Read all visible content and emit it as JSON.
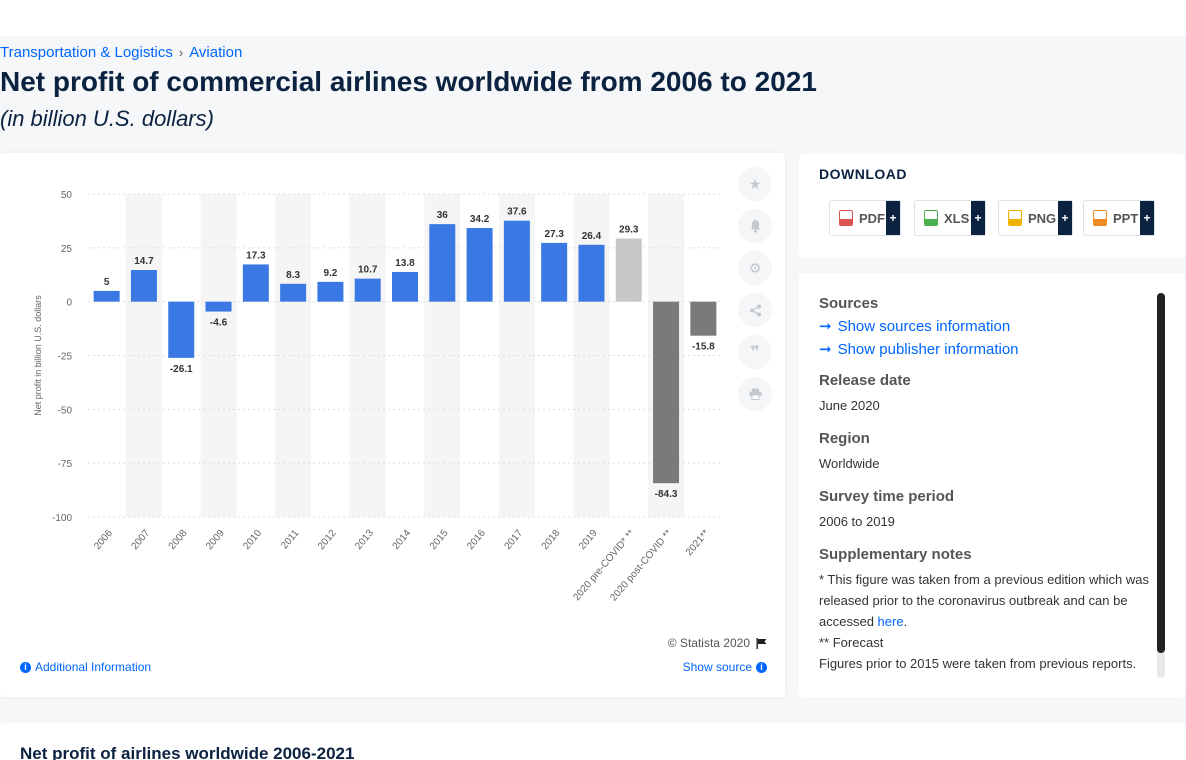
{
  "breadcrumb": {
    "item1": "Transportation & Logistics",
    "sep": "›",
    "item2": "Aviation"
  },
  "title": "Net profit of commercial airlines worldwide from 2006 to 2021",
  "subtitle": "(in billion U.S. dollars)",
  "chart_data": {
    "type": "bar",
    "ylabel": "Net profit in billion U.S. dollars",
    "ylim": [
      -100,
      50
    ],
    "yticks": [
      50,
      25,
      0,
      -25,
      -50,
      -75,
      -100
    ],
    "grid": true,
    "categories": [
      "2006",
      "2007",
      "2008",
      "2009",
      "2010",
      "2011",
      "2012",
      "2013",
      "2014",
      "2015",
      "2016",
      "2017",
      "2018",
      "2019",
      "2020 pre-COVID* **",
      "2020 post-COVID **",
      "2021**"
    ],
    "values": [
      5,
      14.7,
      -26.1,
      -4.6,
      17.3,
      8.3,
      9.2,
      10.7,
      13.8,
      36,
      34.2,
      37.6,
      27.3,
      26.4,
      29.3,
      -84.3,
      -15.8
    ],
    "labels": [
      "5",
      "14.7",
      "-26.1",
      "-4.6",
      "17.3",
      "8.3",
      "9.2",
      "10.7",
      "13.8",
      "36",
      "34.2",
      "37.6",
      "27.3",
      "26.4",
      "29.3",
      "-84.3",
      "-15.8"
    ],
    "bar_colors": [
      "#3a79e4",
      "#3a79e4",
      "#3a79e4",
      "#3a79e4",
      "#3a79e4",
      "#3a79e4",
      "#3a79e4",
      "#3a79e4",
      "#3a79e4",
      "#3a79e4",
      "#3a79e4",
      "#3a79e4",
      "#3a79e4",
      "#3a79e4",
      "#c8c8c8",
      "#7a7a7a",
      "#7a7a7a"
    ]
  },
  "tools": [
    "star-icon",
    "bell-icon",
    "gear-icon",
    "share-icon",
    "quote-icon",
    "print-icon"
  ],
  "credit": "© Statista 2020",
  "additional_info": "Additional Information",
  "show_source": "Show source",
  "download": {
    "title": "DOWNLOAD",
    "buttons": [
      {
        "label": "PDF",
        "color": "#d9534f"
      },
      {
        "label": "XLS",
        "color": "#4caf50"
      },
      {
        "label": "PNG",
        "color": "#f0b400"
      },
      {
        "label": "PPT",
        "color": "#f08a24"
      }
    ],
    "plus": "+"
  },
  "sources": {
    "title": "Sources",
    "show_sources": "Show sources information",
    "show_publisher": "Show publisher information",
    "release_title": "Release date",
    "release_value": "June 2020",
    "region_title": "Region",
    "region_value": "Worldwide",
    "survey_title": "Survey time period",
    "survey_value": "2006 to 2019",
    "supp_title": "Supplementary notes",
    "supp_note1": "* This figure was taken from a previous edition which was released prior to the coronavirus outbreak and can be accessed ",
    "supp_link": "here",
    "supp_note1_end": ".",
    "supp_note2": "** Forecast",
    "supp_note3": "Figures prior to 2015 were taken from previous reports."
  },
  "bottom_title": "Net profit of airlines worldwide 2006-2021"
}
